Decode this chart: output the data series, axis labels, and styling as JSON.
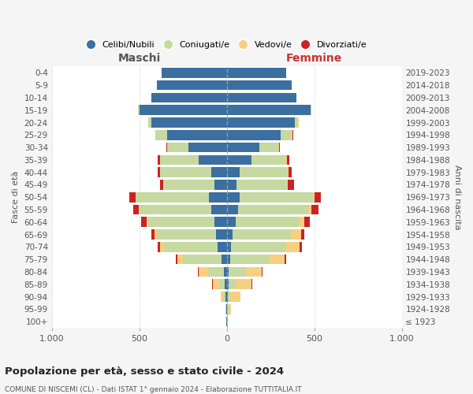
{
  "age_groups": [
    "100+",
    "95-99",
    "90-94",
    "85-89",
    "80-84",
    "75-79",
    "70-74",
    "65-69",
    "60-64",
    "55-59",
    "50-54",
    "45-49",
    "40-44",
    "35-39",
    "30-34",
    "25-29",
    "20-24",
    "15-19",
    "10-14",
    "5-9",
    "0-4"
  ],
  "birth_years": [
    "≤ 1923",
    "1924-1928",
    "1929-1933",
    "1934-1938",
    "1939-1943",
    "1944-1948",
    "1949-1953",
    "1954-1958",
    "1959-1963",
    "1964-1968",
    "1969-1973",
    "1974-1978",
    "1979-1983",
    "1984-1988",
    "1989-1993",
    "1994-1998",
    "1999-2003",
    "2004-2008",
    "2009-2013",
    "2014-2018",
    "2019-2023"
  ],
  "maschi": {
    "celibi": [
      2,
      4,
      5,
      10,
      15,
      30,
      50,
      60,
      70,
      90,
      100,
      70,
      90,
      160,
      220,
      340,
      430,
      500,
      430,
      400,
      370
    ],
    "coniugati": [
      2,
      3,
      15,
      30,
      90,
      220,
      310,
      340,
      380,
      410,
      420,
      290,
      290,
      220,
      120,
      70,
      20,
      8,
      0,
      0,
      0
    ],
    "vedovi": [
      0,
      2,
      15,
      40,
      55,
      30,
      20,
      12,
      8,
      5,
      2,
      2,
      0,
      0,
      0,
      0,
      0,
      0,
      0,
      0,
      0
    ],
    "divorziati": [
      0,
      0,
      0,
      5,
      5,
      12,
      15,
      20,
      30,
      30,
      35,
      20,
      15,
      15,
      5,
      0,
      0,
      0,
      0,
      0,
      0
    ]
  },
  "femmine": {
    "nubili": [
      2,
      4,
      5,
      10,
      10,
      20,
      25,
      35,
      50,
      65,
      75,
      55,
      75,
      140,
      185,
      310,
      390,
      480,
      400,
      370,
      340
    ],
    "coniugate": [
      2,
      5,
      15,
      40,
      100,
      220,
      310,
      330,
      360,
      400,
      420,
      290,
      275,
      200,
      110,
      60,
      15,
      5,
      0,
      0,
      0
    ],
    "vedove": [
      2,
      15,
      60,
      90,
      90,
      90,
      80,
      60,
      35,
      20,
      5,
      5,
      5,
      5,
      5,
      5,
      5,
      0,
      0,
      0,
      0
    ],
    "divorziate": [
      0,
      0,
      0,
      5,
      5,
      10,
      15,
      20,
      30,
      40,
      40,
      35,
      15,
      15,
      5,
      5,
      0,
      0,
      0,
      0,
      0
    ]
  },
  "colors": {
    "celibi": "#3b6fa0",
    "coniugati": "#c5d9a0",
    "vedovi": "#f5d080",
    "divorziati": "#cc2222"
  },
  "title": "Popolazione per età, sesso e stato civile - 2024",
  "subtitle": "COMUNE DI NISCEMI (CL) - Dati ISTAT 1° gennaio 2024 - Elaborazione TUTTITALIA.IT",
  "xlabel_left": "Maschi",
  "xlabel_right": "Femmine",
  "ylabel_left": "Fasce di età",
  "ylabel_right": "Anni di nascita",
  "legend_labels": [
    "Celibi/Nubili",
    "Coniugati/e",
    "Vedovi/e",
    "Divorziati/e"
  ],
  "bg_color": "#f5f5f5",
  "plot_bg_color": "#ffffff",
  "xlim": 1000
}
